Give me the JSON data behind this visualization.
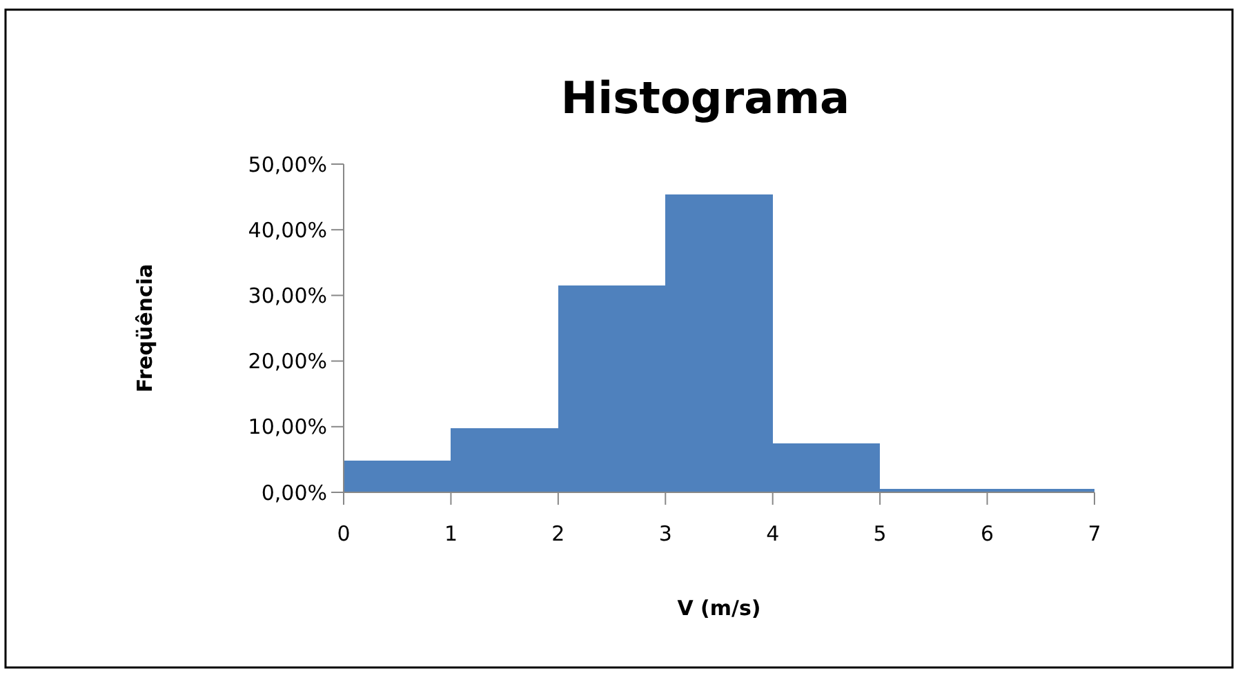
{
  "chart_data": {
    "type": "histogram",
    "title": "Histograma",
    "xlabel": "V (m/s)",
    "ylabel": "Freqüência",
    "bins": [
      0,
      1,
      2,
      3,
      4,
      5,
      6,
      7
    ],
    "values": [
      4.8,
      9.8,
      31.5,
      45.4,
      7.5,
      0.5,
      0.5
    ],
    "color": "#4f81bd",
    "xlim": [
      0,
      7
    ],
    "xticks": [
      0,
      1,
      2,
      3,
      4,
      5,
      6,
      7
    ],
    "ylim": [
      0,
      50
    ],
    "yticks": [
      {
        "value": 0,
        "label": "0,00%"
      },
      {
        "value": 10,
        "label": "10,00%"
      },
      {
        "value": 20,
        "label": "20,00%"
      },
      {
        "value": 30,
        "label": "30,00%"
      },
      {
        "value": 40,
        "label": "40,00%"
      },
      {
        "value": 50,
        "label": "50,00%"
      }
    ],
    "grid": false
  }
}
